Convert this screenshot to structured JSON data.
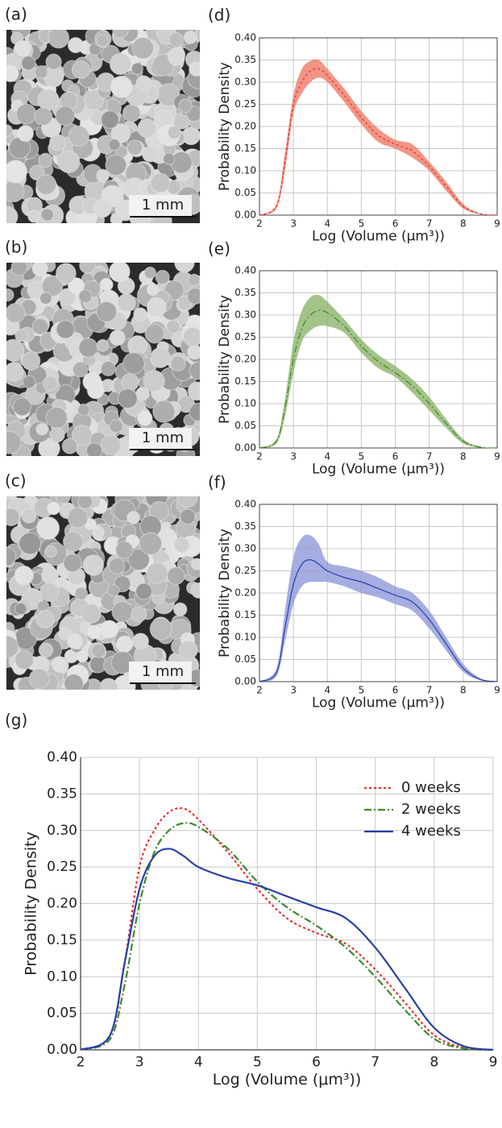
{
  "images": [
    {
      "label": "(a)",
      "scale_bar": "1 mm"
    },
    {
      "label": "(b)",
      "scale_bar": "1 mm"
    },
    {
      "label": "(c)",
      "scale_bar": "1 mm"
    }
  ],
  "chart_data": [
    {
      "type": "line",
      "label": "(d)",
      "xlabel": "Log (Volume (μm³))",
      "ylabel": "Probability Density",
      "xlim": [
        2,
        9
      ],
      "ylim": [
        0,
        0.4
      ],
      "xticks": [
        2,
        3,
        4,
        5,
        6,
        7,
        8,
        9
      ],
      "yticks": [
        {
          "value": 0,
          "label": "0.00"
        },
        {
          "value": 0.05,
          "label": "0.05"
        },
        {
          "value": 0.1,
          "label": "0.10"
        },
        {
          "value": 0.15,
          "label": "0.15"
        },
        {
          "value": 0.2,
          "label": "0.20"
        },
        {
          "value": 0.25,
          "label": "0.25"
        },
        {
          "value": 0.3,
          "label": "0.30"
        },
        {
          "value": 0.35,
          "label": "0.35"
        },
        {
          "value": 0.4,
          "label": "0.40"
        }
      ],
      "grid": true,
      "x": [
        2,
        2.5,
        2.75,
        3,
        3.25,
        3.5,
        3.75,
        4,
        4.5,
        5,
        5.5,
        6,
        6.5,
        7,
        7.5,
        8,
        8.5,
        9
      ],
      "series": [
        {
          "color": "#e8302a",
          "band_color": "#ef7a66",
          "dash": "dotted",
          "values": [
            0,
            0.02,
            0.12,
            0.25,
            0.3,
            0.325,
            0.33,
            0.315,
            0.27,
            0.22,
            0.18,
            0.16,
            0.145,
            0.11,
            0.065,
            0.02,
            0.003,
            0
          ],
          "upper": [
            0,
            0.025,
            0.14,
            0.27,
            0.33,
            0.348,
            0.35,
            0.33,
            0.285,
            0.235,
            0.195,
            0.17,
            0.16,
            0.12,
            0.075,
            0.025,
            0.004,
            0
          ],
          "lower": [
            0,
            0.015,
            0.1,
            0.23,
            0.275,
            0.3,
            0.31,
            0.3,
            0.255,
            0.205,
            0.165,
            0.15,
            0.13,
            0.1,
            0.055,
            0.015,
            0.002,
            0
          ]
        }
      ]
    },
    {
      "type": "line",
      "label": "(e)",
      "xlabel": "Log (Volume (μm³))",
      "ylabel": "Probability Density",
      "xlim": [
        2,
        9
      ],
      "ylim": [
        0,
        0.4
      ],
      "xticks": [
        2,
        3,
        4,
        5,
        6,
        7,
        8,
        9
      ],
      "yticks": [
        {
          "value": 0,
          "label": "0.00"
        },
        {
          "value": 0.05,
          "label": "0.05"
        },
        {
          "value": 0.1,
          "label": "0.10"
        },
        {
          "value": 0.15,
          "label": "0.15"
        },
        {
          "value": 0.2,
          "label": "0.20"
        },
        {
          "value": 0.25,
          "label": "0.25"
        },
        {
          "value": 0.3,
          "label": "0.30"
        },
        {
          "value": 0.35,
          "label": "0.35"
        },
        {
          "value": 0.4,
          "label": "0.40"
        }
      ],
      "grid": true,
      "x": [
        2,
        2.5,
        2.75,
        3,
        3.25,
        3.5,
        3.75,
        4,
        4.5,
        5,
        5.5,
        6,
        6.5,
        7,
        7.5,
        8,
        8.5,
        9
      ],
      "series": [
        {
          "color": "#3d8a2a",
          "band_color": "#8db46c",
          "dash": "dashdot",
          "values": [
            0,
            0.015,
            0.09,
            0.2,
            0.27,
            0.3,
            0.31,
            0.305,
            0.275,
            0.23,
            0.195,
            0.17,
            0.14,
            0.1,
            0.055,
            0.015,
            0.002,
            0
          ],
          "upper": [
            0,
            0.02,
            0.11,
            0.24,
            0.31,
            0.34,
            0.345,
            0.33,
            0.29,
            0.245,
            0.21,
            0.185,
            0.155,
            0.115,
            0.065,
            0.02,
            0.003,
            0
          ],
          "lower": [
            0,
            0.01,
            0.07,
            0.17,
            0.24,
            0.265,
            0.275,
            0.275,
            0.26,
            0.215,
            0.18,
            0.16,
            0.125,
            0.085,
            0.045,
            0.01,
            0.001,
            0
          ]
        }
      ]
    },
    {
      "type": "line",
      "label": "(f)",
      "xlabel": "Log (Volume (μm³))",
      "ylabel": "Probability Density",
      "xlim": [
        2,
        9
      ],
      "ylim": [
        0,
        0.4
      ],
      "xticks": [
        2,
        3,
        4,
        5,
        6,
        7,
        8,
        9
      ],
      "yticks": [
        {
          "value": 0,
          "label": "0.00"
        },
        {
          "value": 0.05,
          "label": "0.05"
        },
        {
          "value": 0.1,
          "label": "0.10"
        },
        {
          "value": 0.15,
          "label": "0.15"
        },
        {
          "value": 0.2,
          "label": "0.20"
        },
        {
          "value": 0.25,
          "label": "0.25"
        },
        {
          "value": 0.3,
          "label": "0.30"
        },
        {
          "value": 0.35,
          "label": "0.35"
        },
        {
          "value": 0.4,
          "label": "0.40"
        }
      ],
      "grid": true,
      "x": [
        2,
        2.5,
        2.75,
        3,
        3.25,
        3.5,
        3.75,
        4,
        4.5,
        5,
        5.5,
        6,
        6.5,
        7,
        7.5,
        8,
        8.5,
        9
      ],
      "series": [
        {
          "color": "#2a3fa8",
          "band_color": "#8e99da",
          "dash": "solid",
          "values": [
            0,
            0.02,
            0.12,
            0.22,
            0.265,
            0.275,
            0.265,
            0.25,
            0.235,
            0.225,
            0.21,
            0.195,
            0.18,
            0.14,
            0.085,
            0.03,
            0.005,
            0
          ],
          "upper": [
            0,
            0.03,
            0.16,
            0.28,
            0.325,
            0.33,
            0.31,
            0.27,
            0.26,
            0.25,
            0.235,
            0.215,
            0.2,
            0.16,
            0.1,
            0.04,
            0.008,
            0
          ],
          "lower": [
            0,
            0.012,
            0.09,
            0.175,
            0.215,
            0.225,
            0.225,
            0.225,
            0.215,
            0.2,
            0.19,
            0.175,
            0.16,
            0.12,
            0.07,
            0.022,
            0.003,
            0
          ]
        }
      ]
    },
    {
      "type": "line",
      "label": "(g)",
      "xlabel": "Log (Volume (μm³))",
      "ylabel": "Probability Density",
      "xlim": [
        2,
        9
      ],
      "ylim": [
        0,
        0.4
      ],
      "xticks": [
        2,
        3,
        4,
        5,
        6,
        7,
        8,
        9
      ],
      "yticks": [
        {
          "value": 0,
          "label": "0.00"
        },
        {
          "value": 0.05,
          "label": "0.05"
        },
        {
          "value": 0.1,
          "label": "0.10"
        },
        {
          "value": 0.15,
          "label": "0.15"
        },
        {
          "value": 0.2,
          "label": "0.20"
        },
        {
          "value": 0.25,
          "label": "0.25"
        },
        {
          "value": 0.3,
          "label": "0.30"
        },
        {
          "value": 0.35,
          "label": "0.35"
        },
        {
          "value": 0.4,
          "label": "0.40"
        }
      ],
      "grid": true,
      "legend": "upper right",
      "x": [
        2,
        2.5,
        2.75,
        3,
        3.25,
        3.5,
        3.75,
        4,
        4.5,
        5,
        5.5,
        6,
        6.5,
        7,
        7.5,
        8,
        8.5,
        9
      ],
      "series": [
        {
          "name": "0 weeks",
          "color": "#e8302a",
          "dash": "dotted",
          "values": [
            0,
            0.02,
            0.12,
            0.25,
            0.3,
            0.325,
            0.33,
            0.315,
            0.27,
            0.22,
            0.18,
            0.16,
            0.145,
            0.11,
            0.065,
            0.02,
            0.003,
            0
          ]
        },
        {
          "name": "2 weeks",
          "color": "#3d8a2a",
          "dash": "dashdot",
          "values": [
            0,
            0.015,
            0.09,
            0.2,
            0.27,
            0.3,
            0.31,
            0.305,
            0.275,
            0.23,
            0.195,
            0.17,
            0.14,
            0.1,
            0.055,
            0.015,
            0.002,
            0
          ]
        },
        {
          "name": "4 weeks",
          "color": "#2a3fa8",
          "dash": "solid",
          "values": [
            0,
            0.02,
            0.12,
            0.22,
            0.265,
            0.275,
            0.265,
            0.25,
            0.235,
            0.225,
            0.21,
            0.195,
            0.18,
            0.14,
            0.085,
            0.03,
            0.005,
            0
          ]
        }
      ]
    }
  ]
}
